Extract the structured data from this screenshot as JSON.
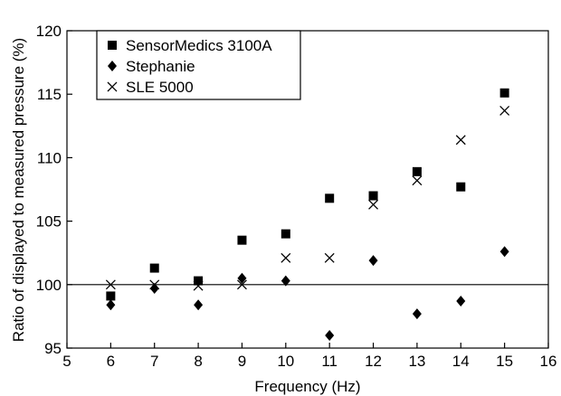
{
  "chart_data": {
    "type": "scatter",
    "title": "",
    "xlabel": "Frequency (Hz)",
    "ylabel": "Ratio of displayed to measured pressure (%)",
    "xlim": [
      5,
      16
    ],
    "ylim": [
      95,
      120
    ],
    "x_ticks": [
      5,
      6,
      7,
      8,
      9,
      10,
      11,
      12,
      13,
      14,
      15,
      16
    ],
    "y_ticks": [
      95,
      100,
      105,
      110,
      115,
      120
    ],
    "reference_line": 100,
    "grid": false,
    "legend_position": "top-left",
    "series": [
      {
        "name": "SensorMedics 3100A",
        "marker": "square",
        "x": [
          6,
          7,
          8,
          9,
          10,
          11,
          12,
          13,
          14,
          15
        ],
        "y": [
          99.1,
          101.3,
          100.3,
          103.5,
          104.0,
          106.8,
          107.0,
          108.9,
          107.7,
          115.1
        ]
      },
      {
        "name": "Stephanie",
        "marker": "diamond",
        "x": [
          6,
          7,
          8,
          9,
          10,
          11,
          12,
          13,
          14,
          15
        ],
        "y": [
          98.4,
          99.7,
          98.4,
          100.5,
          100.3,
          96.0,
          101.9,
          97.7,
          98.7,
          102.6
        ]
      },
      {
        "name": "SLE 5000",
        "marker": "x",
        "x": [
          6,
          7,
          8,
          9,
          10,
          11,
          12,
          13,
          14,
          15
        ],
        "y": [
          100.0,
          100.0,
          99.9,
          100.0,
          102.1,
          102.1,
          106.3,
          108.2,
          111.4,
          113.7
        ]
      }
    ]
  }
}
